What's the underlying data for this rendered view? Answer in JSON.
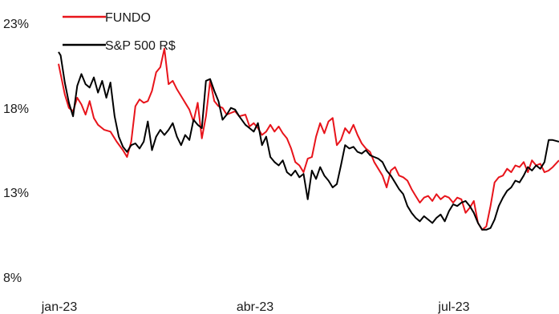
{
  "chart_data": {
    "type": "line",
    "title": "",
    "xlabel": "",
    "ylabel": "",
    "ylim": [
      8,
      23
    ],
    "yticks": [
      "23%",
      "18%",
      "13%",
      "8%"
    ],
    "ytick_values": [
      23,
      18,
      13,
      8
    ],
    "x_start": "2023-01-02",
    "x_end": "2023-08-31",
    "xticks": [
      "jan-23",
      "abr-23",
      "jul-23"
    ],
    "xtick_dates": [
      "2023-01-02",
      "2023-04-01",
      "2023-07-01"
    ],
    "grid": false,
    "legend_position": "top-left",
    "series": [
      {
        "name": "FUNDO",
        "color": "#e8141b",
        "points": [
          [
            "2023-01-02",
            20.6
          ],
          [
            "2023-01-03",
            20.0
          ],
          [
            "2023-01-05",
            18.8
          ],
          [
            "2023-01-07",
            18.0
          ],
          [
            "2023-01-09",
            17.8
          ],
          [
            "2023-01-11",
            18.6
          ],
          [
            "2023-01-13",
            18.2
          ],
          [
            "2023-01-15",
            17.6
          ],
          [
            "2023-01-17",
            18.4
          ],
          [
            "2023-01-19",
            17.4
          ],
          [
            "2023-01-21",
            17.0
          ],
          [
            "2023-01-24",
            16.7
          ],
          [
            "2023-01-27",
            16.6
          ],
          [
            "2023-01-30",
            16.0
          ],
          [
            "2023-02-02",
            15.5
          ],
          [
            "2023-02-04",
            15.1
          ],
          [
            "2023-02-06",
            16.0
          ],
          [
            "2023-02-08",
            18.1
          ],
          [
            "2023-02-10",
            18.5
          ],
          [
            "2023-02-12",
            18.3
          ],
          [
            "2023-02-14",
            18.4
          ],
          [
            "2023-02-16",
            19.0
          ],
          [
            "2023-02-18",
            20.1
          ],
          [
            "2023-02-20",
            20.4
          ],
          [
            "2023-02-22",
            21.5
          ],
          [
            "2023-02-24",
            19.4
          ],
          [
            "2023-02-26",
            19.6
          ],
          [
            "2023-02-28",
            19.1
          ],
          [
            "2023-03-02",
            18.7
          ],
          [
            "2023-03-04",
            18.3
          ],
          [
            "2023-03-06",
            17.9
          ],
          [
            "2023-03-08",
            17.2
          ],
          [
            "2023-03-10",
            18.3
          ],
          [
            "2023-03-12",
            16.2
          ],
          [
            "2023-03-14",
            17.5
          ],
          [
            "2023-03-16",
            19.6
          ],
          [
            "2023-03-18",
            18.4
          ],
          [
            "2023-03-20",
            18.1
          ],
          [
            "2023-03-22",
            18.0
          ],
          [
            "2023-03-24",
            17.6
          ],
          [
            "2023-03-26",
            17.7
          ],
          [
            "2023-03-28",
            17.8
          ],
          [
            "2023-03-30",
            17.5
          ],
          [
            "2023-04-02",
            17.6
          ],
          [
            "2023-04-04",
            16.9
          ],
          [
            "2023-04-06",
            17.1
          ],
          [
            "2023-04-08",
            16.8
          ],
          [
            "2023-04-10",
            16.4
          ],
          [
            "2023-04-12",
            16.6
          ],
          [
            "2023-04-14",
            17.0
          ],
          [
            "2023-04-16",
            16.6
          ],
          [
            "2023-04-18",
            16.9
          ],
          [
            "2023-04-20",
            16.5
          ],
          [
            "2023-04-22",
            16.2
          ],
          [
            "2023-04-24",
            15.6
          ],
          [
            "2023-04-26",
            14.8
          ],
          [
            "2023-04-28",
            14.6
          ],
          [
            "2023-04-30",
            14.2
          ],
          [
            "2023-05-02",
            15.0
          ],
          [
            "2023-05-04",
            15.1
          ],
          [
            "2023-05-06",
            16.3
          ],
          [
            "2023-05-08",
            17.1
          ],
          [
            "2023-05-10",
            16.5
          ],
          [
            "2023-05-12",
            17.2
          ],
          [
            "2023-05-14",
            17.4
          ],
          [
            "2023-05-16",
            15.8
          ],
          [
            "2023-05-18",
            16.1
          ],
          [
            "2023-05-20",
            16.8
          ],
          [
            "2023-05-22",
            16.5
          ],
          [
            "2023-05-24",
            17.0
          ],
          [
            "2023-05-26",
            16.4
          ],
          [
            "2023-05-28",
            15.9
          ],
          [
            "2023-05-30",
            15.6
          ],
          [
            "2023-06-01",
            15.4
          ],
          [
            "2023-06-03",
            14.8
          ],
          [
            "2023-06-05",
            14.4
          ],
          [
            "2023-06-07",
            14.0
          ],
          [
            "2023-06-09",
            13.3
          ],
          [
            "2023-06-11",
            14.3
          ],
          [
            "2023-06-13",
            14.5
          ],
          [
            "2023-06-15",
            14.0
          ],
          [
            "2023-06-17",
            13.9
          ],
          [
            "2023-06-19",
            13.7
          ],
          [
            "2023-06-21",
            13.2
          ],
          [
            "2023-06-23",
            12.8
          ],
          [
            "2023-06-25",
            12.4
          ],
          [
            "2023-06-27",
            12.7
          ],
          [
            "2023-06-29",
            12.8
          ],
          [
            "2023-07-01",
            12.5
          ],
          [
            "2023-07-03",
            12.9
          ],
          [
            "2023-07-05",
            12.6
          ],
          [
            "2023-07-07",
            12.8
          ],
          [
            "2023-07-09",
            12.7
          ],
          [
            "2023-07-11",
            12.4
          ],
          [
            "2023-07-13",
            12.7
          ],
          [
            "2023-07-15",
            12.6
          ],
          [
            "2023-07-17",
            11.8
          ],
          [
            "2023-07-19",
            12.1
          ],
          [
            "2023-07-21",
            12.5
          ],
          [
            "2023-07-23",
            11.2
          ],
          [
            "2023-07-25",
            10.8
          ],
          [
            "2023-07-27",
            11.0
          ],
          [
            "2023-07-29",
            12.2
          ],
          [
            "2023-07-31",
            13.6
          ],
          [
            "2023-08-02",
            13.9
          ],
          [
            "2023-08-04",
            14.0
          ],
          [
            "2023-08-06",
            14.4
          ],
          [
            "2023-08-08",
            14.2
          ],
          [
            "2023-08-10",
            14.6
          ],
          [
            "2023-08-12",
            14.5
          ],
          [
            "2023-08-14",
            14.8
          ],
          [
            "2023-08-16",
            14.2
          ],
          [
            "2023-08-18",
            14.9
          ],
          [
            "2023-08-20",
            14.6
          ],
          [
            "2023-08-22",
            14.7
          ],
          [
            "2023-08-24",
            14.2
          ],
          [
            "2023-08-26",
            14.3
          ],
          [
            "2023-08-28",
            14.5
          ],
          [
            "2023-08-31",
            14.9
          ]
        ]
      },
      {
        "name": "S&P 500 R$",
        "color": "#000000",
        "points": [
          [
            "2023-01-02",
            21.3
          ],
          [
            "2023-01-03",
            21.1
          ],
          [
            "2023-01-05",
            19.5
          ],
          [
            "2023-01-07",
            18.3
          ],
          [
            "2023-01-09",
            17.5
          ],
          [
            "2023-01-11",
            19.3
          ],
          [
            "2023-01-13",
            20.0
          ],
          [
            "2023-01-15",
            19.4
          ],
          [
            "2023-01-17",
            19.2
          ],
          [
            "2023-01-19",
            19.8
          ],
          [
            "2023-01-21",
            18.9
          ],
          [
            "2023-01-23",
            19.6
          ],
          [
            "2023-01-25",
            18.6
          ],
          [
            "2023-01-27",
            19.5
          ],
          [
            "2023-01-29",
            17.5
          ],
          [
            "2023-01-31",
            16.3
          ],
          [
            "2023-02-02",
            15.7
          ],
          [
            "2023-02-04",
            15.4
          ],
          [
            "2023-02-06",
            15.8
          ],
          [
            "2023-02-08",
            15.9
          ],
          [
            "2023-02-10",
            15.6
          ],
          [
            "2023-02-12",
            16.0
          ],
          [
            "2023-02-14",
            17.2
          ],
          [
            "2023-02-16",
            15.5
          ],
          [
            "2023-02-18",
            16.3
          ],
          [
            "2023-02-20",
            16.7
          ],
          [
            "2023-02-22",
            16.4
          ],
          [
            "2023-02-24",
            16.7
          ],
          [
            "2023-02-26",
            17.1
          ],
          [
            "2023-02-28",
            16.3
          ],
          [
            "2023-03-02",
            15.8
          ],
          [
            "2023-03-04",
            16.4
          ],
          [
            "2023-03-06",
            16.1
          ],
          [
            "2023-03-08",
            17.3
          ],
          [
            "2023-03-10",
            17.0
          ],
          [
            "2023-03-12",
            16.8
          ],
          [
            "2023-03-14",
            19.6
          ],
          [
            "2023-03-16",
            19.7
          ],
          [
            "2023-03-18",
            19.0
          ],
          [
            "2023-03-20",
            18.4
          ],
          [
            "2023-03-22",
            17.3
          ],
          [
            "2023-03-24",
            17.6
          ],
          [
            "2023-03-26",
            18.0
          ],
          [
            "2023-03-28",
            17.9
          ],
          [
            "2023-03-30",
            17.5
          ],
          [
            "2023-04-02",
            17.0
          ],
          [
            "2023-04-04",
            16.8
          ],
          [
            "2023-04-06",
            16.6
          ],
          [
            "2023-04-08",
            17.1
          ],
          [
            "2023-04-10",
            15.8
          ],
          [
            "2023-04-12",
            16.3
          ],
          [
            "2023-04-14",
            15.1
          ],
          [
            "2023-04-16",
            14.8
          ],
          [
            "2023-04-18",
            14.6
          ],
          [
            "2023-04-20",
            14.9
          ],
          [
            "2023-04-22",
            14.2
          ],
          [
            "2023-04-24",
            14.0
          ],
          [
            "2023-04-26",
            14.3
          ],
          [
            "2023-04-28",
            13.9
          ],
          [
            "2023-04-30",
            14.1
          ],
          [
            "2023-05-02",
            12.6
          ],
          [
            "2023-05-04",
            14.3
          ],
          [
            "2023-05-06",
            13.8
          ],
          [
            "2023-05-08",
            14.5
          ],
          [
            "2023-05-10",
            14.0
          ],
          [
            "2023-05-12",
            13.7
          ],
          [
            "2023-05-14",
            13.3
          ],
          [
            "2023-05-16",
            13.5
          ],
          [
            "2023-05-18",
            14.6
          ],
          [
            "2023-05-20",
            15.8
          ],
          [
            "2023-05-22",
            15.6
          ],
          [
            "2023-05-24",
            15.7
          ],
          [
            "2023-05-26",
            15.4
          ],
          [
            "2023-05-28",
            15.3
          ],
          [
            "2023-05-30",
            15.5
          ],
          [
            "2023-06-01",
            15.2
          ],
          [
            "2023-06-03",
            15.1
          ],
          [
            "2023-06-05",
            15.0
          ],
          [
            "2023-06-07",
            14.8
          ],
          [
            "2023-06-09",
            14.3
          ],
          [
            "2023-06-11",
            14.0
          ],
          [
            "2023-06-13",
            13.6
          ],
          [
            "2023-06-15",
            13.2
          ],
          [
            "2023-06-17",
            12.9
          ],
          [
            "2023-06-19",
            12.2
          ],
          [
            "2023-06-21",
            11.8
          ],
          [
            "2023-06-23",
            11.5
          ],
          [
            "2023-06-25",
            11.3
          ],
          [
            "2023-06-27",
            11.6
          ],
          [
            "2023-06-29",
            11.4
          ],
          [
            "2023-07-01",
            11.2
          ],
          [
            "2023-07-03",
            11.5
          ],
          [
            "2023-07-05",
            11.7
          ],
          [
            "2023-07-07",
            11.3
          ],
          [
            "2023-07-09",
            11.9
          ],
          [
            "2023-07-11",
            12.3
          ],
          [
            "2023-07-13",
            12.2
          ],
          [
            "2023-07-15",
            12.4
          ],
          [
            "2023-07-17",
            12.5
          ],
          [
            "2023-07-19",
            12.2
          ],
          [
            "2023-07-21",
            11.8
          ],
          [
            "2023-07-23",
            11.2
          ],
          [
            "2023-07-25",
            10.8
          ],
          [
            "2023-07-27",
            10.8
          ],
          [
            "2023-07-29",
            10.9
          ],
          [
            "2023-07-31",
            11.4
          ],
          [
            "2023-08-02",
            12.2
          ],
          [
            "2023-08-04",
            12.7
          ],
          [
            "2023-08-06",
            13.1
          ],
          [
            "2023-08-08",
            13.3
          ],
          [
            "2023-08-10",
            13.7
          ],
          [
            "2023-08-12",
            13.6
          ],
          [
            "2023-08-14",
            14.0
          ],
          [
            "2023-08-16",
            14.5
          ],
          [
            "2023-08-18",
            14.3
          ],
          [
            "2023-08-20",
            14.6
          ],
          [
            "2023-08-22",
            14.4
          ],
          [
            "2023-08-24",
            14.8
          ],
          [
            "2023-08-26",
            16.1
          ],
          [
            "2023-08-28",
            16.1
          ],
          [
            "2023-08-31",
            16.0
          ]
        ]
      }
    ]
  }
}
